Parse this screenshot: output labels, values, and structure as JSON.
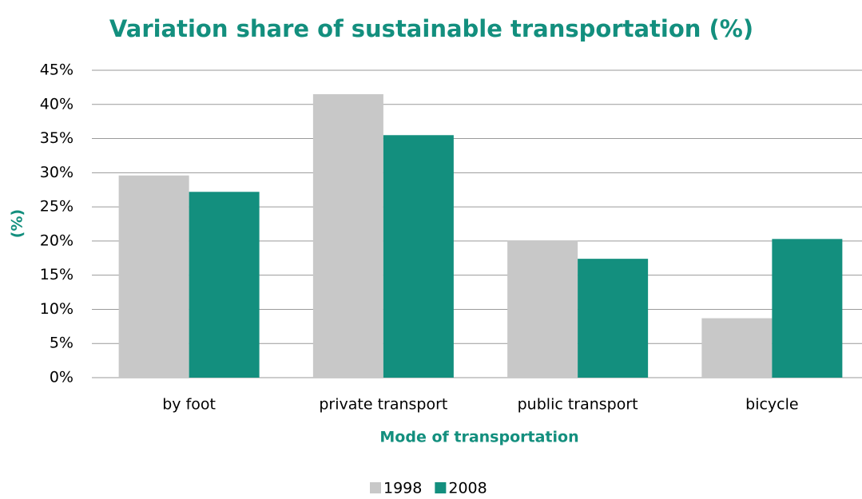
{
  "chart_data": {
    "type": "bar",
    "title": "Variation share of sustainable transportation (%)",
    "y_label": "(%)",
    "x_label": "Mode of transportation",
    "categories": [
      "by foot",
      "private transport",
      "public transport",
      "bicycle"
    ],
    "series": [
      {
        "name": "1998",
        "color": "#c8c8c8",
        "values": [
          29.6,
          41.5,
          20.1,
          8.7
        ]
      },
      {
        "name": "2008",
        "color": "#138f7e",
        "values": [
          27.2,
          35.5,
          17.4,
          20.3
        ]
      }
    ],
    "ylim": [
      0,
      45
    ],
    "yticks": [
      {
        "value": 0,
        "label": "0%"
      },
      {
        "value": 5,
        "label": "5%"
      },
      {
        "value": 10,
        "label": "10%"
      },
      {
        "value": 15,
        "label": "15%"
      },
      {
        "value": 20,
        "label": "20%"
      },
      {
        "value": 25,
        "label": "25%"
      },
      {
        "value": 30,
        "label": "30%"
      },
      {
        "value": 35,
        "label": "35%"
      },
      {
        "value": 40,
        "label": "40%"
      },
      {
        "value": 45,
        "label": "45%"
      }
    ],
    "grid": true,
    "legend": "bottom"
  }
}
